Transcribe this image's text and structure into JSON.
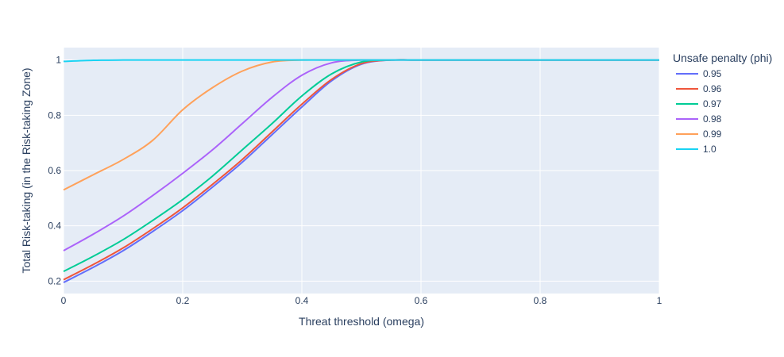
{
  "chart_data": {
    "type": "line",
    "xlabel": "Threat threshold (omega)",
    "ylabel": "Total Risk-taking (in the Risk-taking Zone)",
    "xlim": [
      0,
      1
    ],
    "ylim": [
      0.155,
      1.045
    ],
    "x_ticks": [
      "0",
      "0.2",
      "0.4",
      "0.6",
      "0.8",
      "1"
    ],
    "y_ticks": [
      "0.2",
      "0.4",
      "0.6",
      "0.8",
      "1"
    ],
    "grid": true,
    "legend": {
      "title": "Unsafe penalty (phi)",
      "placement": "right"
    },
    "x": [
      0,
      0.05,
      0.1,
      0.15,
      0.2,
      0.25,
      0.3,
      0.35,
      0.4,
      0.45,
      0.5,
      0.55,
      0.6,
      0.7,
      0.8,
      0.9,
      1.0
    ],
    "series": [
      {
        "name": "0.95",
        "color": "#636efa",
        "values": [
          0.195,
          0.25,
          0.31,
          0.38,
          0.455,
          0.54,
          0.63,
          0.73,
          0.83,
          0.925,
          0.985,
          1.0,
          1.0,
          1.0,
          1.0,
          1.0,
          1.0
        ]
      },
      {
        "name": "0.96",
        "color": "#ef553b",
        "values": [
          0.205,
          0.26,
          0.32,
          0.39,
          0.465,
          0.55,
          0.64,
          0.74,
          0.84,
          0.93,
          0.987,
          1.0,
          1.0,
          1.0,
          1.0,
          1.0,
          1.0
        ]
      },
      {
        "name": "0.97",
        "color": "#00cc96",
        "values": [
          0.235,
          0.29,
          0.35,
          0.42,
          0.495,
          0.58,
          0.675,
          0.77,
          0.87,
          0.95,
          0.993,
          1.0,
          1.0,
          1.0,
          1.0,
          1.0,
          1.0
        ]
      },
      {
        "name": "0.98",
        "color": "#ab63fa",
        "values": [
          0.31,
          0.37,
          0.435,
          0.51,
          0.59,
          0.675,
          0.77,
          0.865,
          0.945,
          0.99,
          1.0,
          1.0,
          1.0,
          1.0,
          1.0,
          1.0,
          1.0
        ]
      },
      {
        "name": "0.99",
        "color": "#ffa15a",
        "values": [
          0.53,
          0.585,
          0.64,
          0.71,
          0.82,
          0.9,
          0.96,
          0.993,
          1.0,
          1.0,
          1.0,
          1.0,
          1.0,
          1.0,
          1.0,
          1.0,
          1.0
        ]
      },
      {
        "name": "1.0",
        "color": "#19d3f3",
        "values": [
          0.995,
          0.999,
          1.0,
          1.0,
          1.0,
          1.0,
          1.0,
          1.0,
          1.0,
          1.0,
          1.0,
          1.0,
          1.0,
          1.0,
          1.0,
          1.0,
          1.0
        ]
      }
    ],
    "colors": {
      "plot_bg": "#e5ecf6",
      "grid": "#ffffff",
      "text": "#2a3f5f"
    }
  }
}
